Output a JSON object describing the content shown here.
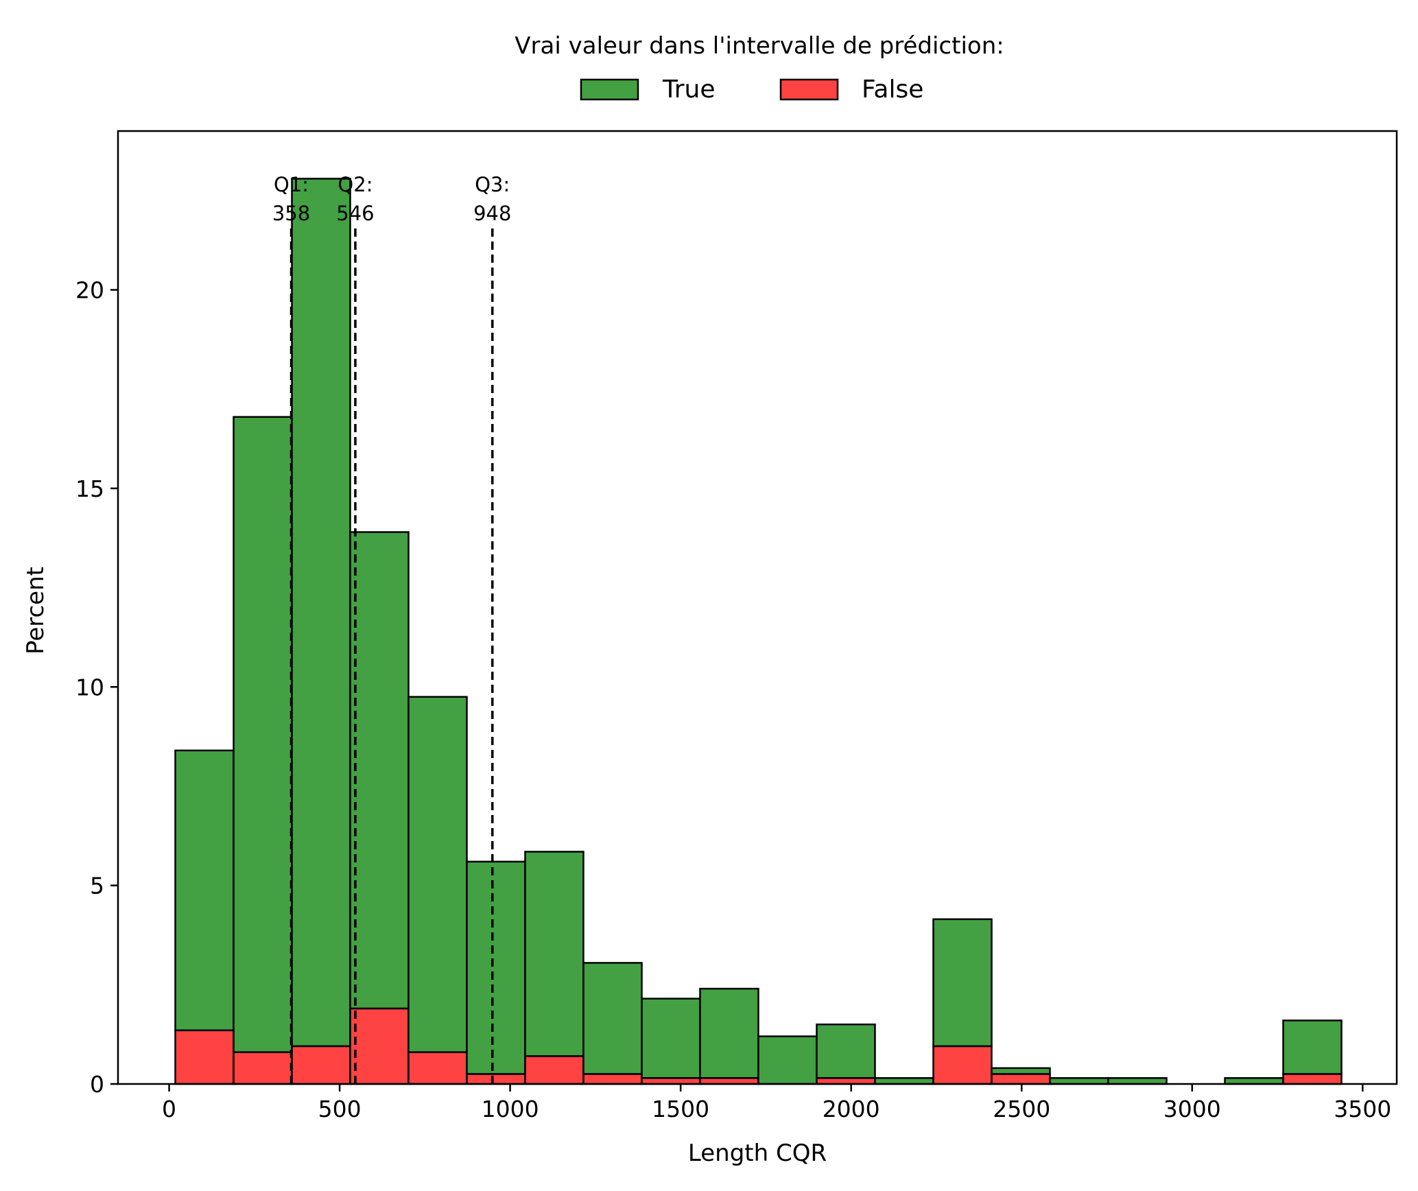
{
  "chart_data": {
    "type": "bar",
    "stacked": true,
    "xlabel": "Length CQR",
    "ylabel": "Percent",
    "xlim": [
      -150,
      3600
    ],
    "ylim": [
      0,
      24
    ],
    "x_ticks": [
      0,
      500,
      1000,
      1500,
      2000,
      2500,
      3000,
      3500
    ],
    "y_ticks": [
      0,
      5,
      10,
      15,
      20
    ],
    "legend": {
      "title": "Vrai valeur dans l'intervalle de prédiction:",
      "placement": "top-center, outside plot",
      "entries": [
        {
          "label": "True",
          "color": "#43a043"
        },
        {
          "label": "False",
          "color": "#ff4242"
        }
      ]
    },
    "bins": [
      {
        "x0": 18,
        "x1": 189,
        "false": 1.35,
        "total": 8.4
      },
      {
        "x0": 189,
        "x1": 360,
        "false": 0.8,
        "total": 16.8
      },
      {
        "x0": 360,
        "x1": 531,
        "false": 0.95,
        "total": 22.8
      },
      {
        "x0": 531,
        "x1": 702,
        "false": 1.9,
        "total": 13.9
      },
      {
        "x0": 702,
        "x1": 873,
        "false": 0.8,
        "total": 9.75
      },
      {
        "x0": 873,
        "x1": 1044,
        "false": 0.25,
        "total": 5.6
      },
      {
        "x0": 1044,
        "x1": 1215,
        "false": 0.7,
        "total": 5.85
      },
      {
        "x0": 1215,
        "x1": 1386,
        "false": 0.25,
        "total": 3.05
      },
      {
        "x0": 1386,
        "x1": 1557,
        "false": 0.15,
        "total": 2.15
      },
      {
        "x0": 1557,
        "x1": 1728,
        "false": 0.15,
        "total": 2.4
      },
      {
        "x0": 1728,
        "x1": 1899,
        "false": 0.0,
        "total": 1.2
      },
      {
        "x0": 1899,
        "x1": 2070,
        "false": 0.15,
        "total": 1.5
      },
      {
        "x0": 2070,
        "x1": 2241,
        "false": 0.0,
        "total": 0.15
      },
      {
        "x0": 2241,
        "x1": 2412,
        "false": 0.95,
        "total": 4.15
      },
      {
        "x0": 2412,
        "x1": 2583,
        "false": 0.25,
        "total": 0.4
      },
      {
        "x0": 2583,
        "x1": 2754,
        "false": 0.0,
        "total": 0.15
      },
      {
        "x0": 2754,
        "x1": 2925,
        "false": 0.0,
        "total": 0.15
      },
      {
        "x0": 2925,
        "x1": 3096,
        "false": 0.0,
        "total": 0.0
      },
      {
        "x0": 3096,
        "x1": 3267,
        "false": 0.0,
        "total": 0.15
      },
      {
        "x0": 3267,
        "x1": 3438,
        "false": 0.25,
        "total": 1.6
      }
    ],
    "quartiles": [
      {
        "label": "Q1:",
        "value": 358,
        "value_text": "358"
      },
      {
        "label": "Q2:",
        "value": 546,
        "value_text": "546"
      },
      {
        "label": "Q3:",
        "value": 948,
        "value_text": "948"
      }
    ],
    "grid": false
  }
}
